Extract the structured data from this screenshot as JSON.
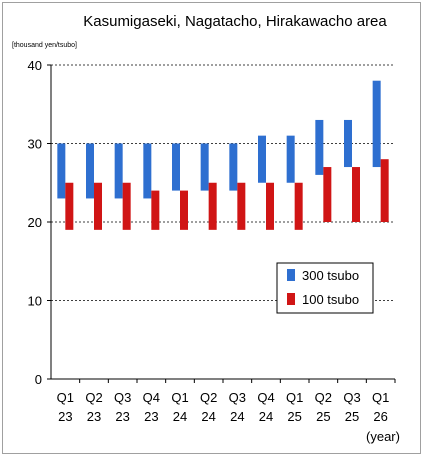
{
  "chart_data": {
    "type": "bar",
    "subtype": "floating-range",
    "title": "Kasumigaseki, Nagatacho, Hirakawacho area",
    "ylabel": "[thousand yen/tsubo]",
    "xlabel": "(year)",
    "ylim": [
      0,
      40
    ],
    "yticks": [
      0,
      10,
      20,
      30,
      40
    ],
    "grid": "horizontal-dashed",
    "legend_position": "right",
    "categories": [
      {
        "q": "Q1",
        "y": "23"
      },
      {
        "q": "Q2",
        "y": "23"
      },
      {
        "q": "Q3",
        "y": "23"
      },
      {
        "q": "Q4",
        "y": "23"
      },
      {
        "q": "Q1",
        "y": "24"
      },
      {
        "q": "Q2",
        "y": "24"
      },
      {
        "q": "Q3",
        "y": "24"
      },
      {
        "q": "Q4",
        "y": "24"
      },
      {
        "q": "Q1",
        "y": "25"
      },
      {
        "q": "Q2",
        "y": "25"
      },
      {
        "q": "Q3",
        "y": "25"
      },
      {
        "q": "Q1",
        "y": "26"
      }
    ],
    "series": [
      {
        "name": "300 tsubo",
        "color": "#2e6fd0",
        "ranges": [
          [
            23,
            30
          ],
          [
            23,
            30
          ],
          [
            23,
            30
          ],
          [
            23,
            30
          ],
          [
            24,
            30
          ],
          [
            24,
            30
          ],
          [
            24,
            30
          ],
          [
            25,
            31
          ],
          [
            25,
            31
          ],
          [
            26,
            33
          ],
          [
            27,
            33
          ],
          [
            27,
            38
          ]
        ]
      },
      {
        "name": "100 tsubo",
        "color": "#d01515",
        "ranges": [
          [
            19,
            25
          ],
          [
            19,
            25
          ],
          [
            19,
            25
          ],
          [
            19,
            24
          ],
          [
            19,
            24
          ],
          [
            19,
            25
          ],
          [
            19,
            25
          ],
          [
            19,
            25
          ],
          [
            19,
            25
          ],
          [
            20,
            27
          ],
          [
            20,
            27
          ],
          [
            20,
            28
          ]
        ]
      }
    ]
  }
}
